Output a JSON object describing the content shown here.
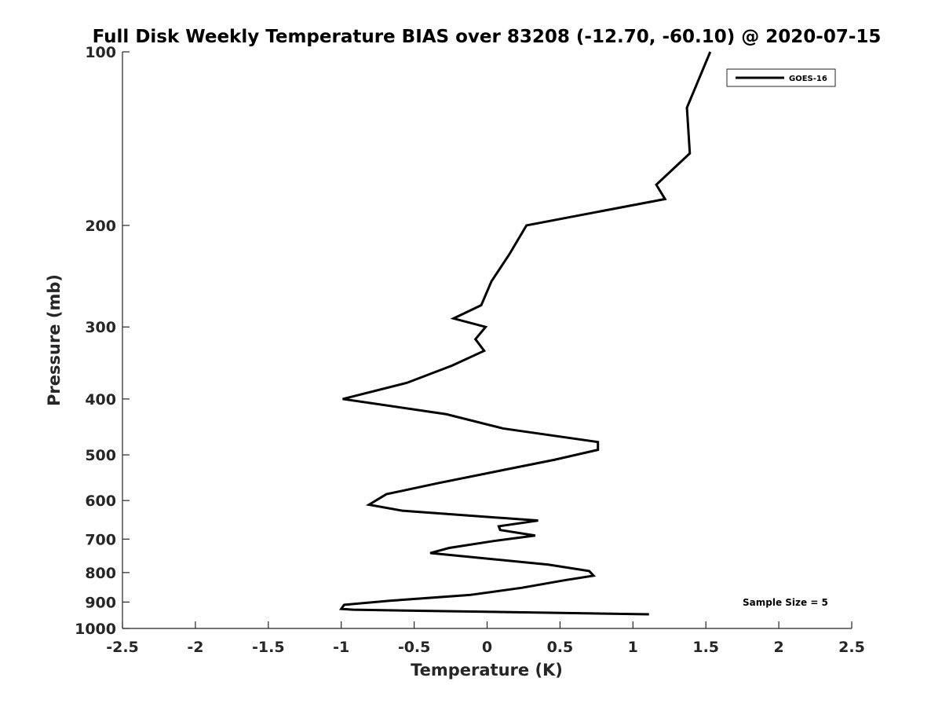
{
  "chart_data": {
    "type": "line",
    "title": "Full Disk Weekly Temperature BIAS over 83208 (-12.70, -60.10) @ 2020-07-15",
    "xlabel": "Temperature (K)",
    "ylabel": "Pressure (mb)",
    "xlim": [
      -2.5,
      2.5
    ],
    "ylim": [
      100,
      1000
    ],
    "y_scale": "log",
    "y_reversed": true,
    "grid": false,
    "legend_position": "top-right",
    "x_ticks": [
      "-2.5",
      "-2",
      "-1.5",
      "-1",
      "-0.5",
      "0",
      "0.5",
      "1",
      "1.5",
      "2",
      "2.5"
    ],
    "x_tick_values": [
      -2.5,
      -2,
      -1.5,
      -1,
      -0.5,
      0,
      0.5,
      1,
      1.5,
      2,
      2.5
    ],
    "y_ticks": [
      "100",
      "200",
      "300",
      "400",
      "500",
      "600",
      "700",
      "800",
      "900",
      "1000"
    ],
    "y_tick_values": [
      100,
      200,
      300,
      400,
      500,
      600,
      700,
      800,
      900,
      1000
    ],
    "series": [
      {
        "name": "GOES-16",
        "color": "#000000",
        "points": [
          [
            1.53,
            100
          ],
          [
            1.37,
            125
          ],
          [
            1.39,
            150
          ],
          [
            1.16,
            170
          ],
          [
            1.22,
            180
          ],
          [
            0.27,
            200
          ],
          [
            0.15,
            225
          ],
          [
            0.03,
            250
          ],
          [
            -0.04,
            275
          ],
          [
            -0.23,
            290
          ],
          [
            -0.01,
            300
          ],
          [
            -0.08,
            315
          ],
          [
            -0.02,
            330
          ],
          [
            -0.24,
            350
          ],
          [
            -0.55,
            375
          ],
          [
            -0.99,
            400
          ],
          [
            -0.28,
            425
          ],
          [
            0.11,
            450
          ],
          [
            0.76,
            475
          ],
          [
            0.76,
            490
          ],
          [
            0.46,
            510
          ],
          [
            0.05,
            535
          ],
          [
            -0.34,
            560
          ],
          [
            -0.69,
            585
          ],
          [
            -0.81,
            610
          ],
          [
            -0.58,
            625
          ],
          [
            0.35,
            650
          ],
          [
            0.08,
            665
          ],
          [
            0.09,
            675
          ],
          [
            0.33,
            690
          ],
          [
            0.05,
            705
          ],
          [
            -0.26,
            725
          ],
          [
            -0.39,
            740
          ],
          [
            0.42,
            775
          ],
          [
            0.7,
            795
          ],
          [
            0.73,
            810
          ],
          [
            0.53,
            825
          ],
          [
            0.24,
            850
          ],
          [
            -0.12,
            875
          ],
          [
            -0.66,
            895
          ],
          [
            -0.98,
            910
          ],
          [
            -1.0,
            925
          ],
          [
            -0.92,
            928
          ],
          [
            1.11,
            945
          ]
        ]
      }
    ],
    "annotation": "Sample Size = 5"
  }
}
